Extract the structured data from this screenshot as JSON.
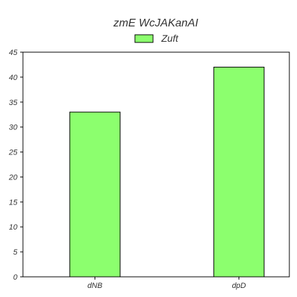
{
  "chart_data": {
    "type": "bar",
    "title": "zmE WcJAKanAI",
    "categories": [
      "dNB",
      "dpD"
    ],
    "series": [
      {
        "name": "Zuft",
        "values": [
          33,
          42
        ],
        "color": "#8cff6e"
      }
    ],
    "ylim": [
      0,
      45
    ],
    "yticks": [
      0,
      5,
      10,
      15,
      20,
      25,
      30,
      35,
      40,
      45
    ],
    "xlabel": "",
    "ylabel": "",
    "grid": false,
    "legend_position": "top-center"
  }
}
